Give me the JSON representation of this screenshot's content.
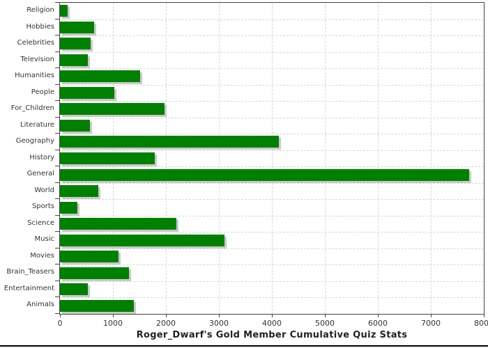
{
  "chart_data": {
    "type": "bar",
    "orientation": "horizontal",
    "title": "Roger_Dwarf's Gold Member Cumulative Quiz Stats",
    "categories": [
      "Religion",
      "Hobbies",
      "Celebrities",
      "Television",
      "Humanities",
      "People",
      "For_Children",
      "Literature",
      "Geography",
      "History",
      "General",
      "World",
      "Sports",
      "Science",
      "Music",
      "Movies",
      "Brain_Teasers",
      "Entertainment",
      "Animals"
    ],
    "values": [
      140,
      640,
      580,
      520,
      1510,
      1020,
      1970,
      560,
      4130,
      1790,
      7730,
      720,
      330,
      2200,
      3100,
      1100,
      1300,
      520,
      1400
    ],
    "xlabel": "",
    "ylabel": "",
    "xlim": [
      0,
      8000
    ],
    "x_ticks": [
      0,
      1000,
      2000,
      3000,
      4000,
      5000,
      6000,
      7000,
      8000
    ],
    "grid": "dashed",
    "legend": "none",
    "colors": {
      "bar": "#008000",
      "bar_shadow": "#c9c9c9",
      "gridline": "#d6d6d6",
      "axis": "#444444",
      "tick_label": "#333333",
      "title": "#222222"
    }
  }
}
